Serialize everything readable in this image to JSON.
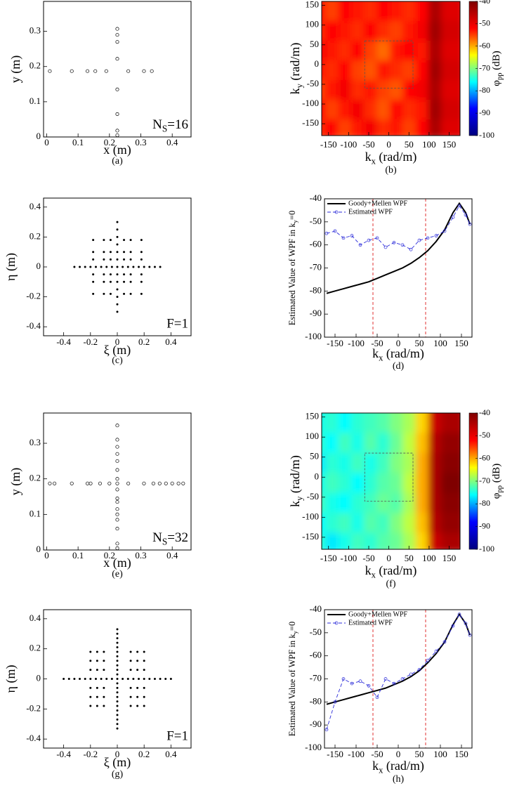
{
  "chart_data": [
    {
      "type": "scatter",
      "marker": "open-circle",
      "color": "#000000",
      "x": [
        0.01,
        0.08,
        0.13,
        0.155,
        0.19,
        0.26,
        0.31,
        0.335,
        0.225,
        0.225,
        0.225,
        0.225,
        0.225,
        0.225,
        0.225,
        0.225
      ],
      "y": [
        0.187,
        0.187,
        0.187,
        0.187,
        0.187,
        0.187,
        0.187,
        0.187,
        0.005,
        0.018,
        0.065,
        0.135,
        0.222,
        0.27,
        0.29,
        0.307
      ],
      "xlim": [
        -0.01,
        0.46
      ],
      "ylim": [
        0,
        0.385
      ],
      "xticks": [
        0,
        0.1,
        0.2,
        0.3,
        0.4
      ],
      "yticks": [
        0,
        0.1,
        0.2,
        0.3
      ],
      "xlabel": "x (m)",
      "ylabel": "y (m)",
      "annotation": {
        "text": "N",
        "sub": "S",
        "after": "=16"
      },
      "caption": "(a)"
    },
    {
      "type": "heatmap",
      "x": [
        -160,
        -128,
        -96,
        -64,
        -32,
        0,
        32,
        64,
        96,
        128,
        160
      ],
      "y": [
        -150,
        -100,
        -50,
        0,
        50,
        100,
        150
      ],
      "z": [
        [
          -54,
          -52,
          -55,
          -53,
          -51,
          -54,
          -53,
          -55,
          -52,
          -44,
          -49
        ],
        [
          -52,
          -55,
          -53,
          -51,
          -54,
          -56,
          -52,
          -54,
          -53,
          -43,
          -48
        ],
        [
          -55,
          -53,
          -51,
          -54,
          -53,
          -55,
          -56,
          -52,
          -51,
          -44,
          -49
        ],
        [
          -53,
          -54,
          -52,
          -55,
          -56,
          -53,
          -54,
          -55,
          -52,
          -43,
          -48
        ],
        [
          -51,
          -53,
          -54,
          -52,
          -55,
          -57,
          -53,
          -52,
          -53,
          -44,
          -49
        ],
        [
          -54,
          -52,
          -53,
          -54,
          -52,
          -54,
          -55,
          -53,
          -51,
          -43,
          -48
        ],
        [
          -53,
          -55,
          -52,
          -53,
          -54,
          -52,
          -53,
          -54,
          -52,
          -44,
          -49
        ]
      ],
      "zlim": [
        -100,
        -40
      ],
      "zticks": [
        -40,
        -50,
        -60,
        -70,
        -80,
        -90,
        -100
      ],
      "colorscale": [
        "#00007f",
        "#0000ff",
        "#00ffff",
        "#ffff00",
        "#ff0000",
        "#7f0000"
      ],
      "xlim": [
        -167,
        177
      ],
      "ylim": [
        -180,
        160
      ],
      "xticks": [
        -150,
        -100,
        -50,
        0,
        50,
        100,
        150
      ],
      "yticks": [
        -150,
        -100,
        -50,
        0,
        50,
        100,
        150
      ],
      "highlight_box": {
        "x": [
          -60,
          60
        ],
        "y": [
          -60,
          60
        ]
      },
      "xlabel": {
        "text": "k",
        "sub": "x",
        "after": "(rad/m)"
      },
      "ylabel": {
        "text": "k",
        "sub": "y",
        "after": "(rad/m)"
      },
      "colorbar_label": {
        "text": "φ",
        "sub": "pp",
        "after": "(dB)"
      },
      "caption": "(b)"
    },
    {
      "type": "scatter",
      "marker": "dot",
      "color": "#000000",
      "x": [
        -0.32,
        -0.28,
        -0.24,
        -0.2,
        -0.16,
        -0.12,
        -0.08,
        -0.04,
        0,
        0.04,
        0.08,
        0.12,
        0.16,
        0.2,
        0.24,
        0.28,
        0.32,
        0,
        0,
        0,
        0,
        0,
        0,
        0,
        0,
        0,
        0,
        0,
        0,
        -0.18,
        -0.1,
        -0.05,
        0.05,
        0.1,
        0.18,
        -0.18,
        -0.1,
        -0.05,
        0.05,
        0.1,
        0.18,
        -0.18,
        -0.1,
        -0.05,
        0.05,
        0.1,
        0.18,
        -0.18,
        -0.1,
        -0.05,
        0.05,
        0.1,
        0.18,
        -0.18,
        -0.1,
        -0.05,
        0.05,
        0.1,
        0.18,
        -0.18,
        -0.1,
        -0.05,
        0.05,
        0.1,
        0.18
      ],
      "y": [
        0,
        0,
        0,
        0,
        0,
        0,
        0,
        0,
        0,
        0,
        0,
        0,
        0,
        0,
        0,
        0,
        0,
        -0.3,
        -0.25,
        -0.2,
        -0.15,
        -0.1,
        -0.05,
        0.05,
        0.1,
        0.15,
        0.2,
        0.25,
        0.3,
        -0.18,
        -0.18,
        -0.18,
        -0.18,
        -0.18,
        -0.18,
        -0.1,
        -0.1,
        -0.1,
        -0.1,
        -0.1,
        -0.1,
        -0.05,
        -0.05,
        -0.05,
        -0.05,
        -0.05,
        -0.05,
        0.05,
        0.05,
        0.05,
        0.05,
        0.05,
        0.05,
        0.1,
        0.1,
        0.1,
        0.1,
        0.1,
        0.1,
        0.18,
        0.18,
        0.18,
        0.18,
        0.18,
        0.18
      ],
      "xlim": [
        -0.55,
        0.55
      ],
      "ylim": [
        -0.46,
        0.46
      ],
      "xticks": [
        -0.4,
        -0.2,
        0,
        0.2,
        0.4
      ],
      "yticks": [
        -0.4,
        -0.2,
        0,
        0.2,
        0.4
      ],
      "xlabel": "ξ (m)",
      "ylabel": "η (m)",
      "annotation": "F=1",
      "caption": "(c)"
    },
    {
      "type": "line",
      "x": [
        -170,
        -150,
        -130,
        -110,
        -90,
        -70,
        -50,
        -30,
        -10,
        10,
        30,
        50,
        70,
        90,
        110,
        130,
        145,
        160,
        170
      ],
      "series": [
        {
          "name": "Goody+Mellen WPF",
          "color": "#000000",
          "style": "solid",
          "marker": "none",
          "values": [
            -81,
            -80,
            -79,
            -78,
            -77,
            -76,
            -74.5,
            -73,
            -71.5,
            -70,
            -68,
            -65.5,
            -62.5,
            -58.5,
            -53.5,
            -46,
            -42,
            -46,
            -51
          ]
        },
        {
          "name": "Estimated WPF",
          "color": "#2b2bd9",
          "style": "dashed",
          "marker": "open-circle",
          "values": [
            -55,
            -54,
            -57,
            -56,
            -60,
            -58,
            -57,
            -61,
            -59,
            -60,
            -62,
            -58,
            -57,
            -56,
            -54,
            -48,
            -43,
            -47,
            -51
          ]
        }
      ],
      "xlim": [
        -175,
        175
      ],
      "ylim": [
        -100,
        -40
      ],
      "xticks": [
        -150,
        -100,
        -50,
        0,
        50,
        100,
        150
      ],
      "yticks": [
        -100,
        -90,
        -80,
        -70,
        -60,
        -50,
        -40
      ],
      "vlines": [
        -60,
        65
      ],
      "vline_color": "#e03030",
      "legend": "upper left",
      "xlabel": {
        "text": "k",
        "sub": "x",
        "after": "(rad/m)"
      },
      "ylabel": {
        "text": "Estimated Value of WPF in k",
        "sub": "y",
        "after": "=0"
      },
      "caption": "(d)"
    },
    {
      "type": "scatter",
      "marker": "open-circle",
      "color": "#000000",
      "x": [
        0.01,
        0.025,
        0.08,
        0.13,
        0.14,
        0.17,
        0.2,
        0.26,
        0.31,
        0.34,
        0.36,
        0.38,
        0.4,
        0.42,
        0.435,
        0.225,
        0.225,
        0.225,
        0.225,
        0.225,
        0.225,
        0.225,
        0.225,
        0.225,
        0.225,
        0.225,
        0.225,
        0.225,
        0.225,
        0.225,
        0.225,
        0.225
      ],
      "y": [
        0.187,
        0.187,
        0.187,
        0.187,
        0.187,
        0.187,
        0.187,
        0.187,
        0.187,
        0.187,
        0.187,
        0.187,
        0.187,
        0.187,
        0.187,
        0.005,
        0.018,
        0.06,
        0.085,
        0.1,
        0.115,
        0.135,
        0.145,
        0.17,
        0.187,
        0.2,
        0.225,
        0.25,
        0.27,
        0.29,
        0.31,
        0.35
      ],
      "xlim": [
        -0.01,
        0.46
      ],
      "ylim": [
        0,
        0.385
      ],
      "xticks": [
        0,
        0.1,
        0.2,
        0.3,
        0.4
      ],
      "yticks": [
        0,
        0.1,
        0.2,
        0.3
      ],
      "xlabel": "x (m)",
      "ylabel": "y (m)",
      "annotation": {
        "text": "N",
        "sub": "S",
        "after": "=32"
      },
      "caption": "(e)"
    },
    {
      "type": "heatmap",
      "x": [
        -160,
        -128,
        -96,
        -64,
        -32,
        0,
        32,
        64,
        96,
        128,
        160
      ],
      "y": [
        -150,
        -100,
        -50,
        0,
        50,
        100,
        150
      ],
      "z": [
        [
          -74,
          -77,
          -75,
          -73,
          -74,
          -72,
          -71,
          -68,
          -62,
          -47,
          -44
        ],
        [
          -76,
          -74,
          -73,
          -75,
          -72,
          -73,
          -70,
          -67,
          -61,
          -45,
          -42
        ],
        [
          -73,
          -75,
          -76,
          -74,
          -73,
          -71,
          -72,
          -68,
          -60,
          -44,
          -41
        ],
        [
          -75,
          -73,
          -74,
          -76,
          -74,
          -72,
          -71,
          -67,
          -60,
          -44,
          -40
        ],
        [
          -77,
          -74,
          -75,
          -73,
          -75,
          -73,
          -70,
          -68,
          -60,
          -44,
          -41
        ],
        [
          -74,
          -76,
          -73,
          -75,
          -72,
          -74,
          -71,
          -67,
          -61,
          -45,
          -42
        ],
        [
          -75,
          -74,
          -76,
          -74,
          -73,
          -72,
          -70,
          -68,
          -62,
          -47,
          -44
        ]
      ],
      "zlim": [
        -100,
        -40
      ],
      "zticks": [
        -40,
        -50,
        -60,
        -70,
        -80,
        -90,
        -100
      ],
      "colorscale": [
        "#00007f",
        "#0000ff",
        "#00ffff",
        "#ffff00",
        "#ff0000",
        "#7f0000"
      ],
      "xlim": [
        -167,
        177
      ],
      "ylim": [
        -180,
        160
      ],
      "xticks": [
        -150,
        -100,
        -50,
        0,
        50,
        100,
        150
      ],
      "yticks": [
        -150,
        -100,
        -50,
        0,
        50,
        100,
        150
      ],
      "highlight_box": {
        "x": [
          -60,
          60
        ],
        "y": [
          -60,
          60
        ]
      },
      "xlabel": {
        "text": "k",
        "sub": "x",
        "after": "(rad/m)"
      },
      "ylabel": {
        "text": "k",
        "sub": "y",
        "after": "(rad/m)"
      },
      "colorbar_label": {
        "text": "φ",
        "sub": "pp",
        "after": "(dB)"
      },
      "caption": "(f)"
    },
    {
      "type": "scatter",
      "marker": "dot",
      "color": "#000000",
      "x": [
        -0.4,
        -0.36,
        -0.32,
        -0.28,
        -0.24,
        -0.2,
        -0.16,
        -0.12,
        -0.08,
        -0.04,
        0,
        0.04,
        0.08,
        0.12,
        0.16,
        0.2,
        0.24,
        0.28,
        0.32,
        0.36,
        0.4,
        0,
        0,
        0,
        0,
        0,
        0,
        0,
        0,
        0,
        0,
        0,
        0,
        0,
        0,
        0,
        0,
        0,
        0,
        0,
        0,
        0,
        0,
        -0.2,
        -0.15,
        -0.1,
        0.1,
        0.15,
        0.2,
        -0.2,
        -0.15,
        -0.1,
        0.1,
        0.15,
        0.2,
        -0.2,
        -0.15,
        -0.1,
        0.1,
        0.15,
        0.2,
        -0.2,
        -0.15,
        -0.1,
        0.1,
        0.15,
        0.2,
        -0.2,
        -0.15,
        -0.1,
        0.1,
        0.15,
        0.2,
        -0.2,
        -0.15,
        -0.1,
        0.1,
        0.15,
        0.2
      ],
      "y": [
        0,
        0,
        0,
        0,
        0,
        0,
        0,
        0,
        0,
        0,
        0,
        0,
        0,
        0,
        0,
        0,
        0,
        0,
        0,
        0,
        0,
        -0.33,
        -0.3,
        -0.27,
        -0.24,
        -0.21,
        -0.18,
        -0.15,
        -0.12,
        -0.09,
        -0.06,
        -0.03,
        0.03,
        0.06,
        0.09,
        0.12,
        0.15,
        0.18,
        0.21,
        0.24,
        0.27,
        0.3,
        0.33,
        -0.18,
        -0.18,
        -0.18,
        -0.18,
        -0.18,
        -0.18,
        -0.12,
        -0.12,
        -0.12,
        -0.12,
        -0.12,
        -0.12,
        -0.06,
        -0.06,
        -0.06,
        -0.06,
        -0.06,
        -0.06,
        0.06,
        0.06,
        0.06,
        0.06,
        0.06,
        0.06,
        0.12,
        0.12,
        0.12,
        0.12,
        0.12,
        0.12,
        0.18,
        0.18,
        0.18,
        0.18,
        0.18,
        0.18
      ],
      "xlim": [
        -0.55,
        0.55
      ],
      "ylim": [
        -0.46,
        0.46
      ],
      "xticks": [
        -0.4,
        -0.2,
        0,
        0.2,
        0.4
      ],
      "yticks": [
        -0.4,
        -0.2,
        0,
        0.2,
        0.4
      ],
      "xlabel": "ξ (m)",
      "ylabel": "η (m)",
      "annotation": "F=1",
      "caption": "(g)"
    },
    {
      "type": "line",
      "x": [
        -170,
        -150,
        -130,
        -110,
        -90,
        -70,
        -50,
        -30,
        -10,
        10,
        30,
        50,
        70,
        90,
        110,
        130,
        145,
        160,
        170
      ],
      "series": [
        {
          "name": "Goody+Mellen WPF",
          "color": "#000000",
          "style": "solid",
          "marker": "none",
          "values": [
            -81,
            -80,
            -79,
            -78,
            -77,
            -76,
            -75,
            -74,
            -72.5,
            -71,
            -69,
            -66.5,
            -63,
            -59,
            -54,
            -46.5,
            -42,
            -46,
            -51
          ]
        },
        {
          "name": "Estimated WPF",
          "color": "#2b2bd9",
          "style": "dashed",
          "marker": "open-circle",
          "values": [
            -92,
            -80,
            -70,
            -72,
            -71,
            -73,
            -78,
            -70,
            -72,
            -70,
            -68,
            -66,
            -62,
            -58,
            -54,
            -47,
            -42,
            -46,
            -51
          ]
        }
      ],
      "xlim": [
        -175,
        175
      ],
      "ylim": [
        -100,
        -40
      ],
      "xticks": [
        -150,
        -100,
        -50,
        0,
        50,
        100,
        150
      ],
      "yticks": [
        -100,
        -90,
        -80,
        -70,
        -60,
        -50,
        -40
      ],
      "vlines": [
        -60,
        65
      ],
      "vline_color": "#e03030",
      "legend": "upper left",
      "xlabel": {
        "text": "k",
        "sub": "x",
        "after": "(rad/m)"
      },
      "ylabel": {
        "text": "Estimated Value of WPF in k",
        "sub": "y",
        "after": "=0"
      },
      "caption": "(h)"
    }
  ]
}
